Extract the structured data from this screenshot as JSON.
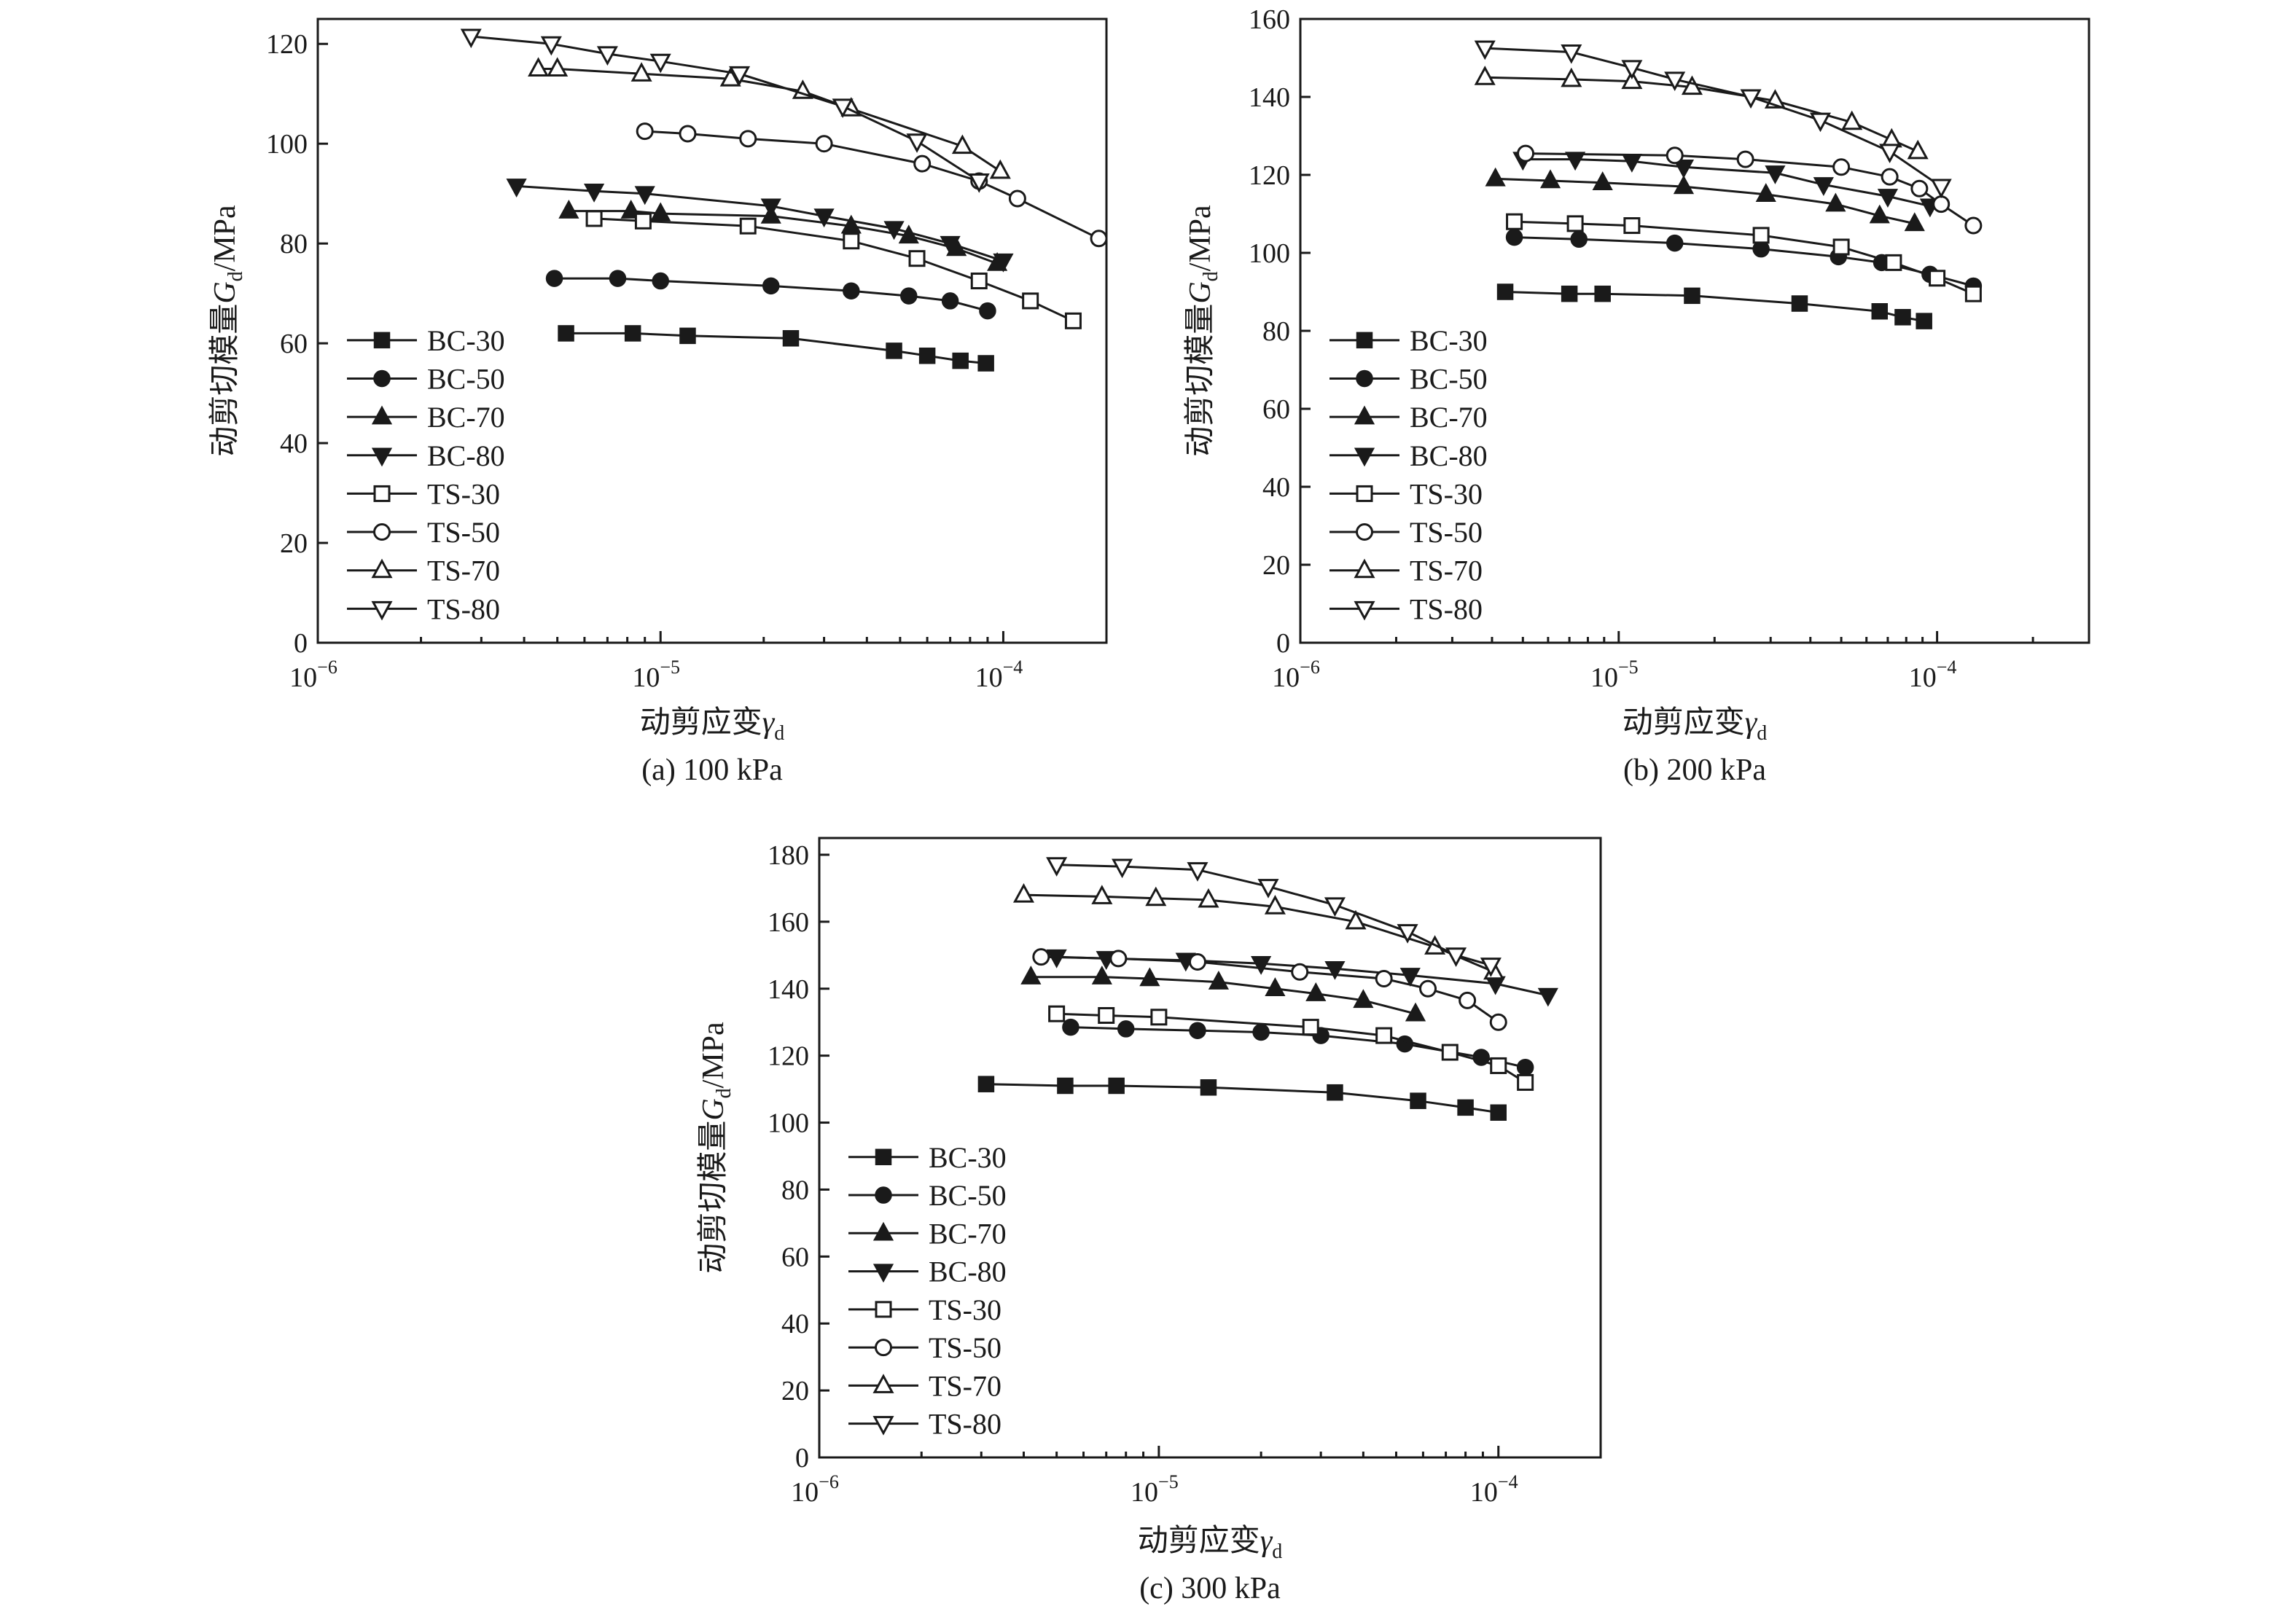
{
  "legend_markers": {
    "BC-30": "filled-square",
    "BC-50": "filled-circle",
    "BC-70": "filled-triangle-up",
    "BC-80": "filled-triangle-down",
    "TS-30": "open-square",
    "TS-50": "open-circle",
    "TS-70": "open-triangle-up",
    "TS-80": "open-triangle-down"
  },
  "colors": {
    "ink": "#1a1a1a",
    "background": "#ffffff"
  },
  "chart_data": [
    {
      "id": "a",
      "type": "line",
      "caption": "(a) 100 kPa",
      "xlabel": "动剪应变γd",
      "xlabel_main": "动剪应变",
      "xlabel_symbol": "γ",
      "xlabel_sub": "d",
      "ylabel": "动剪切模量Gd/MPa",
      "ylabel_main": "动剪切模量",
      "ylabel_symbol": "G",
      "ylabel_sub": "d",
      "ylabel_unit": "/MPa",
      "xscale": "log",
      "xlim": [
        1e-06,
        0.0002
      ],
      "ylim": [
        0,
        125
      ],
      "yticks": [
        0,
        20,
        40,
        60,
        80,
        100,
        120
      ],
      "xticks": [
        {
          "value": 1e-06,
          "base": "10",
          "exp": "−6"
        },
        {
          "value": 1e-05,
          "base": "10",
          "exp": "−5"
        },
        {
          "value": 0.0001,
          "base": "10",
          "exp": "−4"
        }
      ],
      "legend": "left",
      "series": [
        {
          "name": "BC-30",
          "x": [
            5.3e-06,
            8.3e-06,
            1.2e-05,
            2.4e-05,
            4.8e-05,
            6e-05,
            7.5e-05,
            8.9e-05
          ],
          "y": [
            62,
            62,
            61.5,
            61,
            58.5,
            57.5,
            56.5,
            56
          ]
        },
        {
          "name": "BC-50",
          "x": [
            4.9e-06,
            7.5e-06,
            1e-05,
            2.1e-05,
            3.6e-05,
            5.3e-05,
            7e-05,
            9e-05
          ],
          "y": [
            73,
            73,
            72.5,
            71.5,
            70.5,
            69.5,
            68.5,
            66.5
          ]
        },
        {
          "name": "BC-70",
          "x": [
            5.4e-06,
            8.2e-06,
            1e-05,
            2.1e-05,
            3.6e-05,
            5.3e-05,
            7.3e-05,
            9.6e-05
          ],
          "y": [
            86.5,
            86.5,
            86,
            85.5,
            83.5,
            81.5,
            79,
            76
          ]
        },
        {
          "name": "BC-80",
          "x": [
            3.8e-06,
            6.4e-06,
            9e-06,
            2.1e-05,
            3e-05,
            4.8e-05,
            7e-05,
            0.0001
          ],
          "y": [
            91.5,
            90.5,
            90,
            87.5,
            85.5,
            83,
            80,
            76.5
          ]
        },
        {
          "name": "TS-30",
          "x": [
            6.4e-06,
            8.9e-06,
            1.8e-05,
            3.6e-05,
            5.6e-05,
            8.5e-05,
            0.00012,
            0.00016
          ],
          "y": [
            85,
            84.5,
            83.5,
            80.5,
            77,
            72.5,
            68.5,
            64.5
          ]
        },
        {
          "name": "TS-50",
          "x": [
            9e-06,
            1.2e-05,
            1.8e-05,
            3e-05,
            5.8e-05,
            8.5e-05,
            0.00011,
            0.00019
          ],
          "y": [
            102.5,
            102,
            101,
            100,
            96,
            92.5,
            89,
            81
          ]
        },
        {
          "name": "TS-70",
          "x": [
            4.4e-06,
            5e-06,
            8.8e-06,
            1.6e-05,
            2.6e-05,
            3.6e-05,
            7.6e-05,
            9.8e-05
          ],
          "y": [
            115,
            115,
            114,
            113,
            110.5,
            107,
            99.5,
            94.5
          ]
        },
        {
          "name": "TS-80",
          "x": [
            2.8e-06,
            4.8e-06,
            7e-06,
            1e-05,
            1.7e-05,
            3.4e-05,
            5.6e-05,
            8.5e-05
          ],
          "y": [
            121.5,
            120,
            118,
            116.5,
            114,
            107.5,
            100.5,
            92.5
          ]
        }
      ]
    },
    {
      "id": "b",
      "type": "line",
      "caption": "(b) 200 kPa",
      "xlabel": "动剪应变γd",
      "xlabel_main": "动剪应变",
      "xlabel_symbol": "γ",
      "xlabel_sub": "d",
      "ylabel": "动剪切模量Gd/MPa",
      "ylabel_main": "动剪切模量",
      "ylabel_symbol": "G",
      "ylabel_sub": "d",
      "ylabel_unit": "/MPa",
      "xscale": "log",
      "xlim": [
        1e-06,
        0.0003
      ],
      "ylim": [
        0,
        160
      ],
      "yticks": [
        0,
        20,
        40,
        60,
        80,
        100,
        120,
        140,
        160
      ],
      "xticks": [
        {
          "value": 1e-06,
          "base": "10",
          "exp": "−6"
        },
        {
          "value": 1e-05,
          "base": "10",
          "exp": "−5"
        },
        {
          "value": 0.0001,
          "base": "10",
          "exp": "−4"
        }
      ],
      "legend": "left",
      "series": [
        {
          "name": "BC-30",
          "x": [
            4.4e-06,
            7e-06,
            8.9e-06,
            1.7e-05,
            3.7e-05,
            6.6e-05,
            7.8e-05,
            9.1e-05
          ],
          "y": [
            90,
            89.5,
            89.5,
            89,
            87,
            85,
            83.5,
            82.5
          ]
        },
        {
          "name": "BC-50",
          "x": [
            4.7e-06,
            7.5e-06,
            1.5e-05,
            2.8e-05,
            4.9e-05,
            6.7e-05,
            9.5e-05,
            0.00013
          ],
          "y": [
            104,
            103.5,
            102.5,
            101,
            99,
            97.5,
            94.5,
            91.5
          ]
        },
        {
          "name": "BC-70",
          "x": [
            4.1e-06,
            6.1e-06,
            8.9e-06,
            1.6e-05,
            2.9e-05,
            4.8e-05,
            6.6e-05,
            8.5e-05
          ],
          "y": [
            119,
            118.5,
            118,
            117,
            115,
            112.5,
            109.5,
            107.5
          ]
        },
        {
          "name": "BC-80",
          "x": [
            5e-06,
            7.3e-06,
            1.1e-05,
            1.6e-05,
            3.1e-05,
            4.4e-05,
            7e-05,
            9.5e-05
          ],
          "y": [
            124,
            124,
            123.5,
            122,
            120.5,
            117.5,
            114.5,
            112
          ]
        },
        {
          "name": "TS-30",
          "x": [
            4.7e-06,
            7.3e-06,
            1.1e-05,
            2.8e-05,
            5e-05,
            7.3e-05,
            0.0001,
            0.00013
          ],
          "y": [
            108,
            107.5,
            107,
            104.5,
            101.5,
            97.5,
            93.5,
            89.5
          ]
        },
        {
          "name": "TS-50",
          "x": [
            5.1e-06,
            1.5e-05,
            2.5e-05,
            5e-05,
            7.1e-05,
            8.8e-05,
            0.000103,
            0.00013
          ],
          "y": [
            125.5,
            125,
            124,
            122,
            119.5,
            116.5,
            112.5,
            107
          ]
        },
        {
          "name": "TS-70",
          "x": [
            3.8e-06,
            7.1e-06,
            1.1e-05,
            1.7e-05,
            3.1e-05,
            5.4e-05,
            7.2e-05,
            8.7e-05
          ],
          "y": [
            145,
            144.5,
            144,
            142.5,
            139,
            133.5,
            129,
            126
          ]
        },
        {
          "name": "TS-80",
          "x": [
            3.8e-06,
            7.1e-06,
            1.1e-05,
            1.5e-05,
            2.6e-05,
            4.3e-05,
            7.1e-05,
            0.000103
          ],
          "y": [
            152.5,
            151.5,
            147.5,
            144.5,
            140,
            134,
            126,
            117
          ]
        }
      ]
    },
    {
      "id": "c",
      "type": "line",
      "caption": "(c) 300 kPa",
      "xlabel": "动剪应变γd",
      "xlabel_main": "动剪应变",
      "xlabel_symbol": "γ",
      "xlabel_sub": "d",
      "ylabel": "动剪切模量Gd/MPa",
      "ylabel_main": "动剪切模量",
      "ylabel_symbol": "G",
      "ylabel_sub": "d",
      "ylabel_unit": "/MPa",
      "xscale": "log",
      "xlim": [
        1e-06,
        0.0002
      ],
      "ylim": [
        0,
        185
      ],
      "yticks": [
        0,
        20,
        40,
        60,
        80,
        100,
        120,
        140,
        160,
        180
      ],
      "xticks": [
        {
          "value": 1e-06,
          "base": "10",
          "exp": "−6"
        },
        {
          "value": 1e-05,
          "base": "10",
          "exp": "−5"
        },
        {
          "value": 0.0001,
          "base": "10",
          "exp": "−4"
        }
      ],
      "legend": "left",
      "series": [
        {
          "name": "BC-30",
          "x": [
            3.1e-06,
            5.3e-06,
            7.5e-06,
            1.4e-05,
            3.3e-05,
            5.8e-05,
            8e-05,
            0.0001
          ],
          "y": [
            111.5,
            111,
            111,
            110.5,
            109,
            106.5,
            104.5,
            103
          ]
        },
        {
          "name": "BC-50",
          "x": [
            5.5e-06,
            8e-06,
            1.3e-05,
            2e-05,
            3e-05,
            5.3e-05,
            8.9e-05,
            0.00012
          ],
          "y": [
            128.5,
            128,
            127.5,
            127,
            126,
            123.5,
            119.5,
            116.5
          ]
        },
        {
          "name": "BC-70",
          "x": [
            4.2e-06,
            6.8e-06,
            9.4e-06,
            1.5e-05,
            2.2e-05,
            2.9e-05,
            4e-05,
            5.7e-05
          ],
          "y": [
            143.5,
            143.5,
            143,
            142,
            140,
            138.5,
            136.5,
            132.5
          ]
        },
        {
          "name": "BC-80",
          "x": [
            5e-06,
            7e-06,
            1.2e-05,
            2e-05,
            3.3e-05,
            5.5e-05,
            9.8e-05,
            0.00014
          ],
          "y": [
            149.5,
            149,
            148.5,
            147.5,
            146,
            144,
            141.5,
            138
          ]
        },
        {
          "name": "TS-30",
          "x": [
            5e-06,
            7e-06,
            1e-05,
            2.8e-05,
            4.6e-05,
            7.2e-05,
            0.0001,
            0.00012
          ],
          "y": [
            132.5,
            132,
            131.5,
            128.5,
            126,
            121,
            117,
            112
          ]
        },
        {
          "name": "TS-50",
          "x": [
            4.5e-06,
            7.6e-06,
            1.3e-05,
            2.6e-05,
            4.6e-05,
            6.2e-05,
            8.1e-05,
            0.0001
          ],
          "y": [
            149.5,
            149,
            148,
            145,
            143,
            140,
            136.5,
            130
          ]
        },
        {
          "name": "TS-70",
          "x": [
            4e-06,
            6.8e-06,
            9.8e-06,
            1.4e-05,
            2.2e-05,
            3.8e-05,
            6.5e-05,
            9.7e-05
          ],
          "y": [
            168,
            167.5,
            167,
            166.5,
            164.5,
            160,
            152.5,
            145
          ]
        },
        {
          "name": "TS-80",
          "x": [
            5e-06,
            7.8e-06,
            1.3e-05,
            2.1e-05,
            3.3e-05,
            5.4e-05,
            7.5e-05,
            9.5e-05
          ],
          "y": [
            177,
            176.5,
            175.5,
            170.5,
            165,
            157,
            150,
            147
          ]
        }
      ]
    }
  ]
}
